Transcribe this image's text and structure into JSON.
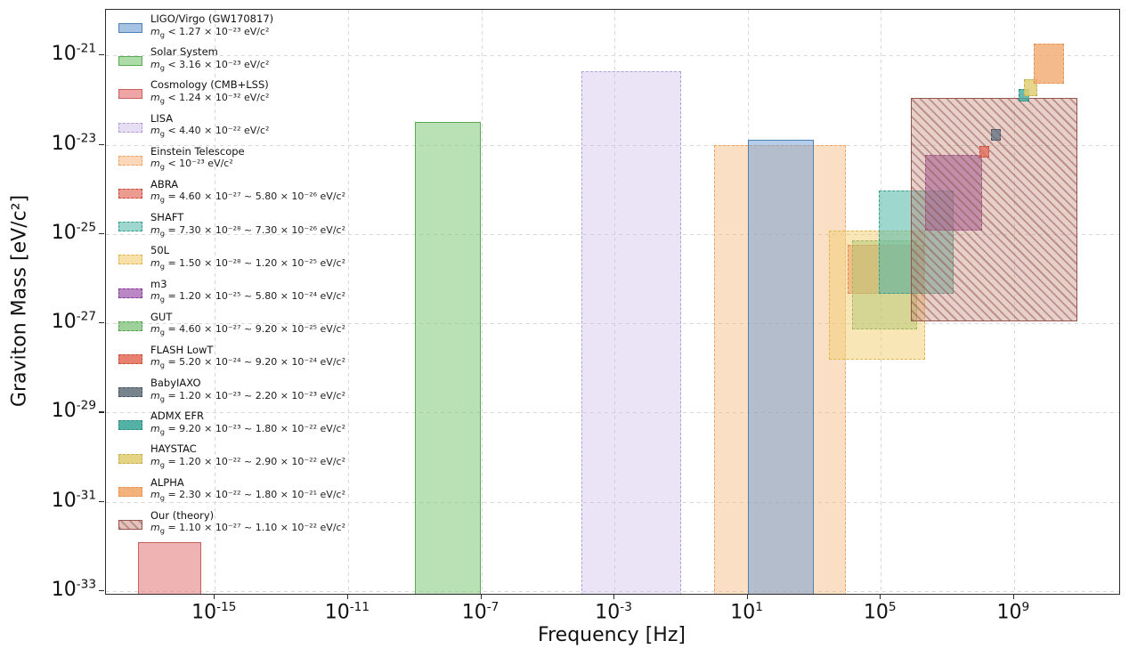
{
  "figure": {
    "xlabel": "Frequency [Hz]",
    "ylabel": "Graviton Mass [eV/c²]",
    "mass_symbol": "m",
    "mass_symbol_sub": "g",
    "background": "#ffffff"
  },
  "chart_data": {
    "type": "area",
    "subtype": "log-log exclusion/sensitivity regions",
    "title": "",
    "xlabel": "Frequency [Hz]",
    "ylabel": "Graviton Mass [eV/c²]",
    "x_axis": {
      "scale": "log",
      "min_log10": -18.27,
      "max_log10": 12.16,
      "tick_exponents": [
        -15,
        -11,
        -7,
        -3,
        1,
        5,
        9
      ],
      "grid": true
    },
    "y_axis": {
      "scale": "log",
      "min_log10": -33.06,
      "max_log10": -19.98,
      "tick_exponents": [
        -21,
        -23,
        -25,
        -27,
        -29,
        -31,
        -33
      ],
      "grid": true
    },
    "legend_position": "upper left",
    "draw_order": [
      "einstein_telescope",
      "ligo",
      "solar_system",
      "cosmology",
      "lisa",
      "abra",
      "shaft",
      "fifty_l",
      "gut",
      "m3",
      "our_theory",
      "flash_lowt",
      "babyiaxo",
      "admx_efr",
      "haystac",
      "alpha_exp"
    ],
    "regions": {
      "ligo": {
        "name": "LIGO/Virgo (GW170817)",
        "freq_log10": [
          1.0,
          3.0
        ],
        "mass_ev": [
          1e-33,
          1.27e-23
        ],
        "fill": "#6b9bd2",
        "alpha": 0.5,
        "border": "#4f81b5",
        "border_style": "solid",
        "hatched": false
      },
      "solar_system": {
        "name": "Solar System",
        "freq_log10": [
          -9.0,
          -7.0
        ],
        "mass_ev": [
          1e-33,
          3.16e-23
        ],
        "fill": "#82c97a",
        "alpha": 0.55,
        "border": "#5aa855",
        "border_style": "solid",
        "hatched": false
      },
      "cosmology": {
        "name": "Cosmology (CMB+LSS)",
        "freq_log10": [
          -17.3,
          -15.4
        ],
        "mass_ev": [
          1e-33,
          1.24e-32
        ],
        "fill": "#e47474",
        "alpha": 0.55,
        "border": "#c95f5f",
        "border_style": "solid",
        "hatched": false
      },
      "lisa": {
        "name": "LISA",
        "freq_log10": [
          -4.0,
          -1.0
        ],
        "mass_ev": [
          1e-33,
          4.4e-22
        ],
        "fill": "#cdbfe9",
        "alpha": 0.42,
        "border": "#b39fd4",
        "border_style": "dashed",
        "hatched": false
      },
      "einstein_telescope": {
        "name": "Einstein Telescope",
        "freq_log10": [
          0.0,
          3.95
        ],
        "mass_ev": [
          1e-33,
          1e-23
        ],
        "fill": "#f5b87f",
        "alpha": 0.45,
        "border": "#efa263",
        "border_style": "dashed",
        "hatched": false
      },
      "abra": {
        "name": "ABRA",
        "freq_log10": [
          4.0,
          6.3
        ],
        "mass_ev": [
          4.6e-27,
          5.8e-26
        ],
        "fill": "#df5948",
        "alpha": 0.5,
        "border": "#c64a3a",
        "border_style": "dashed",
        "hatched": false
      },
      "shaft": {
        "name": "SHAFT",
        "freq_log10": [
          4.15,
          6.1
        ],
        "mass_ev": [
          7.3e-28,
          7.3e-26
        ],
        "fill": "#74bd6d",
        "alpha": 0.5,
        "border": "#53a04e",
        "border_style": "dashed",
        "hatched": false
      },
      "fifty_l": {
        "name": "50L",
        "freq_log10": [
          3.45,
          6.33
        ],
        "mass_ev": [
          1.5e-28,
          1.2e-25
        ],
        "fill": "#f1cd70",
        "alpha": 0.5,
        "border": "#ddb64e",
        "border_style": "dashed",
        "hatched": false
      },
      "m3": {
        "name": "m3",
        "freq_log10": [
          6.33,
          8.05
        ],
        "mass_ev": [
          1.2e-25,
          5.8e-24
        ],
        "fill": "#9c54ac",
        "alpha": 0.6,
        "border": "#7e3d8f",
        "border_style": "dashed",
        "hatched": false
      },
      "gut": {
        "name": "GUT",
        "freq_log10": [
          4.95,
          7.2
        ],
        "mass_ev": [
          4.6e-27,
          9.2e-25
        ],
        "fill": "#5bbcab",
        "alpha": 0.6,
        "border": "#3b9d8d",
        "border_style": "dashed",
        "hatched": false
      },
      "flash_lowt": {
        "name": "FLASH LowT",
        "freq_log10": [
          7.95,
          8.25
        ],
        "mass_ev": [
          5.2e-24,
          9.2e-24
        ],
        "fill": "#e36a55",
        "alpha": 0.75,
        "border": "#c5503e",
        "border_style": "dashed",
        "hatched": false
      },
      "babyiaxo": {
        "name": "BabyIAXO",
        "freq_log10": [
          8.3,
          8.6
        ],
        "mass_ev": [
          1.2e-23,
          2.2e-23
        ],
        "fill": "#5f6e7d",
        "alpha": 0.75,
        "border": "#49545f",
        "border_style": "dashed",
        "hatched": false
      },
      "admx_efr": {
        "name": "ADMX EFR",
        "freq_log10": [
          9.15,
          9.45
        ],
        "mass_ev": [
          9.2e-23,
          1.8e-22
        ],
        "fill": "#41a99b",
        "alpha": 0.8,
        "border": "#2f8a7e",
        "border_style": "dashed",
        "hatched": false
      },
      "haystac": {
        "name": "HAYSTAC",
        "freq_log10": [
          9.3,
          9.7
        ],
        "mass_ev": [
          1.2e-22,
          2.9e-22
        ],
        "fill": "#e2cf74",
        "alpha": 0.85,
        "border": "#c6ae52",
        "border_style": "dashed",
        "hatched": false
      },
      "alpha_exp": {
        "name": "ALPHA",
        "freq_log10": [
          9.6,
          10.5
        ],
        "mass_ev": [
          2.3e-22,
          1.8e-21
        ],
        "fill": "#f2a96e",
        "alpha": 0.8,
        "border": "#e69251",
        "border_style": "dashed",
        "hatched": false
      },
      "our_theory": {
        "name": "Our (theory)",
        "freq_log10": [
          5.9,
          10.9
        ],
        "mass_ev": [
          1.1e-27,
          1.1e-22
        ],
        "fill": "#c08074",
        "alpha": 0.38,
        "border": "#94564c",
        "border_style": "solid",
        "hatched": true
      }
    }
  },
  "legend": {
    "entries": [
      {
        "id": "ligo",
        "name": "LIGO/Virgo (GW170817)",
        "formula": "< 1.27 × 10⁻²³ eV/c²"
      },
      {
        "id": "solar_system",
        "name": "Solar System",
        "formula": "< 3.16 × 10⁻²³ eV/c²"
      },
      {
        "id": "cosmology",
        "name": "Cosmology (CMB+LSS)",
        "formula": "< 1.24 × 10⁻³² eV/c²"
      },
      {
        "id": "lisa",
        "name": "LISA",
        "formula": "< 4.40 × 10⁻²² eV/c²"
      },
      {
        "id": "einstein_telescope",
        "name": "Einstein Telescope",
        "formula": "< 10⁻²³ eV/c²"
      },
      {
        "id": "abra",
        "name": "ABRA",
        "formula": "= 4.60 × 10⁻²⁷ ~ 5.80 × 10⁻²⁶ eV/c²"
      },
      {
        "id": "shaft",
        "name": "SHAFT",
        "formula": "= 7.30 × 10⁻²⁸ ~ 7.30 × 10⁻²⁶ eV/c²",
        "swatch_fill": "#5bbcab",
        "swatch_border": "#3b9d8d"
      },
      {
        "id": "fifty_l",
        "name": "50L",
        "formula": "= 1.50 × 10⁻²⁸ ~ 1.20 × 10⁻²⁵ eV/c²"
      },
      {
        "id": "m3",
        "name": "m3",
        "formula": "= 1.20 × 10⁻²⁵ ~ 5.80 × 10⁻²⁴ eV/c²"
      },
      {
        "id": "gut",
        "name": "GUT",
        "formula": "= 4.60 × 10⁻²⁷ ~ 9.20 × 10⁻²⁵ eV/c²",
        "swatch_fill": "#74bd6d",
        "swatch_border": "#53a04e"
      },
      {
        "id": "flash_lowt",
        "name": "FLASH LowT",
        "formula": "= 5.20 × 10⁻²⁴ ~ 9.20 × 10⁻²⁴ eV/c²"
      },
      {
        "id": "babyiaxo",
        "name": "BabyIAXO",
        "formula": "= 1.20 × 10⁻²³ ~ 2.20 × 10⁻²³ eV/c²"
      },
      {
        "id": "admx_efr",
        "name": "ADMX EFR",
        "formula": "= 9.20 × 10⁻²³ ~ 1.80 × 10⁻²² eV/c²"
      },
      {
        "id": "haystac",
        "name": "HAYSTAC",
        "formula": "= 1.20 × 10⁻²² ~ 2.90 × 10⁻²² eV/c²"
      },
      {
        "id": "alpha_exp",
        "name": "ALPHA",
        "formula": "= 2.30 × 10⁻²² ~ 1.80 × 10⁻²¹ eV/c²"
      },
      {
        "id": "our_theory",
        "name": "Our (theory)",
        "formula": "= 1.10 × 10⁻²⁷ ~ 1.10 × 10⁻²² eV/c²"
      }
    ]
  }
}
